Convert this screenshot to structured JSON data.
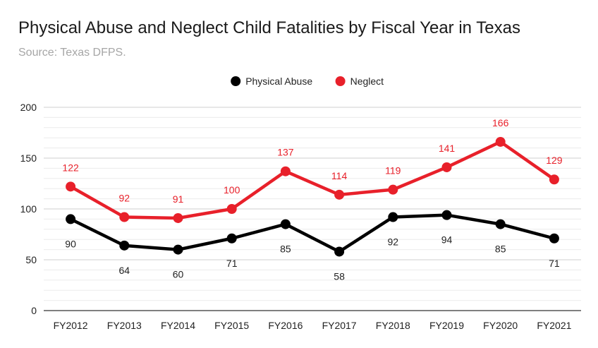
{
  "chart_data": {
    "type": "line",
    "title": "Physical Abuse and Neglect Child Fatalities by Fiscal Year in Texas",
    "subtitle": "Source: Texas DFPS.",
    "categories": [
      "FY2012",
      "FY2013",
      "FY2014",
      "FY2015",
      "FY2016",
      "FY2017",
      "FY2018",
      "FY2019",
      "FY2020",
      "FY2021"
    ],
    "series": [
      {
        "name": "Physical Abuse",
        "color": "#000000",
        "values": [
          90,
          64,
          60,
          71,
          85,
          58,
          92,
          94,
          85,
          71
        ],
        "label_position": "below"
      },
      {
        "name": "Neglect",
        "color": "#e8202a",
        "values": [
          122,
          92,
          91,
          100,
          137,
          114,
          119,
          141,
          166,
          129
        ],
        "label_position": "above"
      }
    ],
    "ylim": [
      0,
      200
    ],
    "yticks": [
      0,
      50,
      100,
      150,
      200
    ],
    "minor_grid": true,
    "legend": "top-center",
    "xlabel": "",
    "ylabel": ""
  }
}
